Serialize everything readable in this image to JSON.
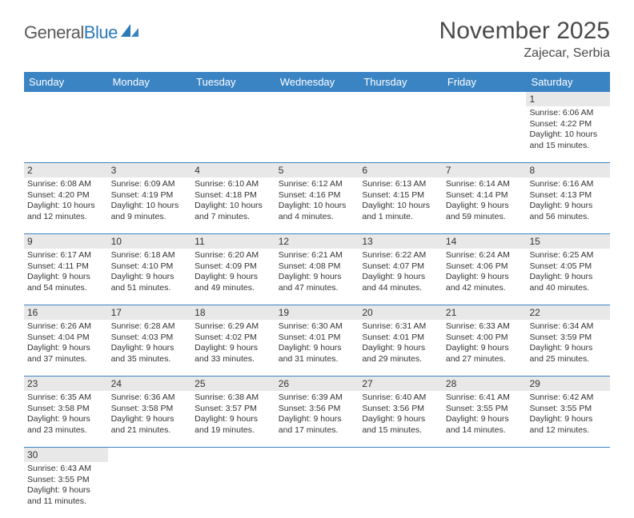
{
  "logo": {
    "word1": "General",
    "word2": "Blue"
  },
  "title": "November 2025",
  "location": "Zajecar, Serbia",
  "colors": {
    "header_bg": "#3b84c4",
    "header_text": "#ffffff",
    "daynum_bg": "#e8e8e8",
    "border": "#3b84c4",
    "text": "#333333",
    "title_text": "#4a4a4a",
    "logo_gray": "#5a5a5a",
    "logo_blue": "#2b7ab8"
  },
  "day_names": [
    "Sunday",
    "Monday",
    "Tuesday",
    "Wednesday",
    "Thursday",
    "Friday",
    "Saturday"
  ],
  "weeks": [
    [
      null,
      null,
      null,
      null,
      null,
      null,
      {
        "n": "1",
        "sunrise": "6:06 AM",
        "sunset": "4:22 PM",
        "dl1": "Daylight: 10 hours",
        "dl2": "and 15 minutes."
      }
    ],
    [
      {
        "n": "2",
        "sunrise": "6:08 AM",
        "sunset": "4:20 PM",
        "dl1": "Daylight: 10 hours",
        "dl2": "and 12 minutes."
      },
      {
        "n": "3",
        "sunrise": "6:09 AM",
        "sunset": "4:19 PM",
        "dl1": "Daylight: 10 hours",
        "dl2": "and 9 minutes."
      },
      {
        "n": "4",
        "sunrise": "6:10 AM",
        "sunset": "4:18 PM",
        "dl1": "Daylight: 10 hours",
        "dl2": "and 7 minutes."
      },
      {
        "n": "5",
        "sunrise": "6:12 AM",
        "sunset": "4:16 PM",
        "dl1": "Daylight: 10 hours",
        "dl2": "and 4 minutes."
      },
      {
        "n": "6",
        "sunrise": "6:13 AM",
        "sunset": "4:15 PM",
        "dl1": "Daylight: 10 hours",
        "dl2": "and 1 minute."
      },
      {
        "n": "7",
        "sunrise": "6:14 AM",
        "sunset": "4:14 PM",
        "dl1": "Daylight: 9 hours",
        "dl2": "and 59 minutes."
      },
      {
        "n": "8",
        "sunrise": "6:16 AM",
        "sunset": "4:13 PM",
        "dl1": "Daylight: 9 hours",
        "dl2": "and 56 minutes."
      }
    ],
    [
      {
        "n": "9",
        "sunrise": "6:17 AM",
        "sunset": "4:11 PM",
        "dl1": "Daylight: 9 hours",
        "dl2": "and 54 minutes."
      },
      {
        "n": "10",
        "sunrise": "6:18 AM",
        "sunset": "4:10 PM",
        "dl1": "Daylight: 9 hours",
        "dl2": "and 51 minutes."
      },
      {
        "n": "11",
        "sunrise": "6:20 AM",
        "sunset": "4:09 PM",
        "dl1": "Daylight: 9 hours",
        "dl2": "and 49 minutes."
      },
      {
        "n": "12",
        "sunrise": "6:21 AM",
        "sunset": "4:08 PM",
        "dl1": "Daylight: 9 hours",
        "dl2": "and 47 minutes."
      },
      {
        "n": "13",
        "sunrise": "6:22 AM",
        "sunset": "4:07 PM",
        "dl1": "Daylight: 9 hours",
        "dl2": "and 44 minutes."
      },
      {
        "n": "14",
        "sunrise": "6:24 AM",
        "sunset": "4:06 PM",
        "dl1": "Daylight: 9 hours",
        "dl2": "and 42 minutes."
      },
      {
        "n": "15",
        "sunrise": "6:25 AM",
        "sunset": "4:05 PM",
        "dl1": "Daylight: 9 hours",
        "dl2": "and 40 minutes."
      }
    ],
    [
      {
        "n": "16",
        "sunrise": "6:26 AM",
        "sunset": "4:04 PM",
        "dl1": "Daylight: 9 hours",
        "dl2": "and 37 minutes."
      },
      {
        "n": "17",
        "sunrise": "6:28 AM",
        "sunset": "4:03 PM",
        "dl1": "Daylight: 9 hours",
        "dl2": "and 35 minutes."
      },
      {
        "n": "18",
        "sunrise": "6:29 AM",
        "sunset": "4:02 PM",
        "dl1": "Daylight: 9 hours",
        "dl2": "and 33 minutes."
      },
      {
        "n": "19",
        "sunrise": "6:30 AM",
        "sunset": "4:01 PM",
        "dl1": "Daylight: 9 hours",
        "dl2": "and 31 minutes."
      },
      {
        "n": "20",
        "sunrise": "6:31 AM",
        "sunset": "4:01 PM",
        "dl1": "Daylight: 9 hours",
        "dl2": "and 29 minutes."
      },
      {
        "n": "21",
        "sunrise": "6:33 AM",
        "sunset": "4:00 PM",
        "dl1": "Daylight: 9 hours",
        "dl2": "and 27 minutes."
      },
      {
        "n": "22",
        "sunrise": "6:34 AM",
        "sunset": "3:59 PM",
        "dl1": "Daylight: 9 hours",
        "dl2": "and 25 minutes."
      }
    ],
    [
      {
        "n": "23",
        "sunrise": "6:35 AM",
        "sunset": "3:58 PM",
        "dl1": "Daylight: 9 hours",
        "dl2": "and 23 minutes."
      },
      {
        "n": "24",
        "sunrise": "6:36 AM",
        "sunset": "3:58 PM",
        "dl1": "Daylight: 9 hours",
        "dl2": "and 21 minutes."
      },
      {
        "n": "25",
        "sunrise": "6:38 AM",
        "sunset": "3:57 PM",
        "dl1": "Daylight: 9 hours",
        "dl2": "and 19 minutes."
      },
      {
        "n": "26",
        "sunrise": "6:39 AM",
        "sunset": "3:56 PM",
        "dl1": "Daylight: 9 hours",
        "dl2": "and 17 minutes."
      },
      {
        "n": "27",
        "sunrise": "6:40 AM",
        "sunset": "3:56 PM",
        "dl1": "Daylight: 9 hours",
        "dl2": "and 15 minutes."
      },
      {
        "n": "28",
        "sunrise": "6:41 AM",
        "sunset": "3:55 PM",
        "dl1": "Daylight: 9 hours",
        "dl2": "and 14 minutes."
      },
      {
        "n": "29",
        "sunrise": "6:42 AM",
        "sunset": "3:55 PM",
        "dl1": "Daylight: 9 hours",
        "dl2": "and 12 minutes."
      }
    ],
    [
      {
        "n": "30",
        "sunrise": "6:43 AM",
        "sunset": "3:55 PM",
        "dl1": "Daylight: 9 hours",
        "dl2": "and 11 minutes."
      },
      null,
      null,
      null,
      null,
      null,
      null
    ]
  ]
}
